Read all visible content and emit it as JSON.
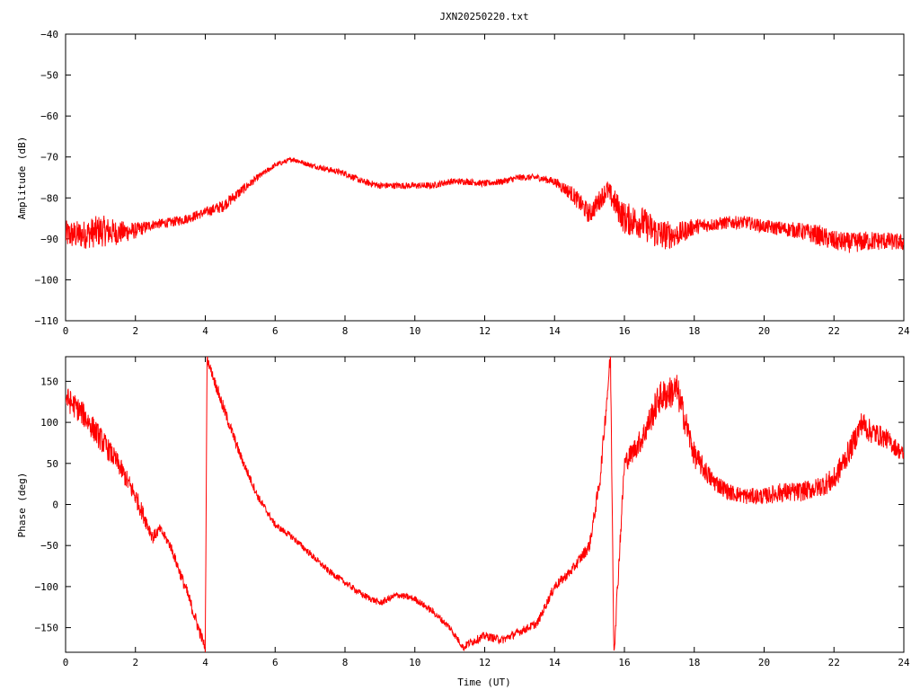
{
  "title": "JXN20250220.txt",
  "chart_data": [
    {
      "type": "line",
      "name": "amplitude",
      "ylabel": "Amplitude (dB)",
      "xlabel": "",
      "xlim": [
        0,
        24
      ],
      "ylim": [
        -110,
        -40
      ],
      "x_ticks": [
        0,
        2,
        4,
        6,
        8,
        10,
        12,
        14,
        16,
        18,
        20,
        22,
        24
      ],
      "y_ticks": [
        -110,
        -100,
        -90,
        -80,
        -70,
        -60,
        -50,
        -40
      ],
      "x_tick_labels": [
        "0",
        "2",
        "4",
        "6",
        "8",
        "10",
        "12",
        "14",
        "16",
        "18",
        "20",
        "22",
        "24"
      ],
      "y_tick_labels": [
        "−110",
        "−100",
        "−90",
        "−80",
        "−70",
        "−60",
        "−50",
        "−40"
      ],
      "color": "#ff0000",
      "series": [
        {
          "x": [
            0,
            0.5,
            1,
            1.5,
            2,
            2.5,
            3,
            3.5,
            4,
            4.5,
            5,
            5.5,
            6,
            6.5,
            7,
            7.5,
            8,
            8.5,
            9,
            9.5,
            10,
            10.5,
            11,
            11.5,
            12,
            12.5,
            13,
            13.5,
            14,
            14.5,
            15,
            15.5,
            16,
            16.5,
            17,
            17.5,
            18,
            18.5,
            19,
            19.5,
            20,
            20.5,
            21,
            21.5,
            22,
            22.5,
            23,
            23.5,
            24
          ],
          "y": [
            -89,
            -89,
            -88,
            -88.5,
            -88,
            -86.5,
            -86,
            -85,
            -83.5,
            -82,
            -78.5,
            -75,
            -72,
            -70.5,
            -72,
            -73,
            -74,
            -76,
            -77,
            -77,
            -77,
            -77,
            -76,
            -76,
            -76.5,
            -76,
            -75,
            -75,
            -76,
            -79,
            -84,
            -78,
            -85,
            -86,
            -89,
            -89,
            -87,
            -86.5,
            -86,
            -86,
            -87,
            -87.5,
            -88,
            -89,
            -90.5,
            -91,
            -90.5,
            -90.5,
            -91
          ],
          "noise": [
            3.5,
            3.5,
            4,
            3,
            2,
            1.2,
            1.2,
            1.2,
            1.2,
            1.5,
            1.3,
            0.8,
            0.6,
            0.6,
            0.6,
            0.7,
            0.8,
            0.8,
            0.8,
            0.8,
            0.8,
            0.8,
            0.8,
            0.8,
            0.8,
            0.8,
            0.8,
            0.8,
            1,
            2,
            2.5,
            2.5,
            4,
            4,
            4,
            3,
            2,
            1.6,
            1.6,
            1.6,
            1.6,
            1.8,
            2,
            2.5,
            2.5,
            2.5,
            2.5,
            2.2,
            2
          ]
        }
      ]
    },
    {
      "type": "line",
      "name": "phase",
      "ylabel": "Phase (deg)",
      "xlabel": "Time (UT)",
      "xlim": [
        0,
        24
      ],
      "ylim": [
        -180,
        180
      ],
      "x_ticks": [
        0,
        2,
        4,
        6,
        8,
        10,
        12,
        14,
        16,
        18,
        20,
        22,
        24
      ],
      "y_ticks": [
        -150,
        -100,
        -50,
        0,
        50,
        100,
        150
      ],
      "x_tick_labels": [
        "0",
        "2",
        "4",
        "6",
        "8",
        "10",
        "12",
        "14",
        "16",
        "18",
        "20",
        "22",
        "24"
      ],
      "y_tick_labels": [
        "−150",
        "−100",
        "−50",
        "0",
        "50",
        "100",
        "150"
      ],
      "color": "#ff0000",
      "series": [
        {
          "x": [
            0,
            0.5,
            1,
            1.5,
            2,
            2.5,
            2.7,
            3,
            3.5,
            3.8,
            4.0,
            4.05,
            4.5,
            5,
            5.5,
            6,
            6.5,
            7,
            7.5,
            8,
            8.5,
            9,
            9.5,
            10,
            10.5,
            11,
            11.4,
            11.5,
            12,
            12.5,
            13,
            13.5,
            14,
            14.5,
            15,
            15.3,
            15.6,
            15.7,
            16.0,
            16.5,
            17.0,
            17.5,
            18,
            18.5,
            19,
            19.5,
            20,
            20.5,
            21,
            21.5,
            22,
            22.5,
            22.8,
            23,
            23.5,
            24
          ],
          "y": [
            130,
            110,
            80,
            50,
            10,
            -40,
            -30,
            -50,
            -110,
            -150,
            -175,
            178,
            120,
            60,
            10,
            -25,
            -40,
            -60,
            -80,
            -95,
            -110,
            -120,
            -110,
            -115,
            -130,
            -150,
            -175,
            -170,
            -160,
            -165,
            -155,
            -145,
            -100,
            -80,
            -50,
            30,
            180,
            -180,
            50,
            80,
            130,
            140,
            60,
            30,
            15,
            10,
            10,
            15,
            15,
            20,
            30,
            70,
            100,
            90,
            80,
            60
          ],
          "noise": [
            15,
            15,
            15,
            12,
            12,
            8,
            6,
            6,
            8,
            8,
            6,
            5,
            8,
            6,
            5,
            4,
            4,
            4,
            4,
            4,
            4,
            4,
            4,
            4,
            4,
            4,
            4,
            5,
            5,
            5,
            5,
            5,
            6,
            6,
            8,
            10,
            12,
            12,
            12,
            15,
            20,
            20,
            15,
            12,
            10,
            10,
            10,
            12,
            12,
            12,
            15,
            15,
            15,
            15,
            12,
            10
          ]
        }
      ]
    }
  ]
}
